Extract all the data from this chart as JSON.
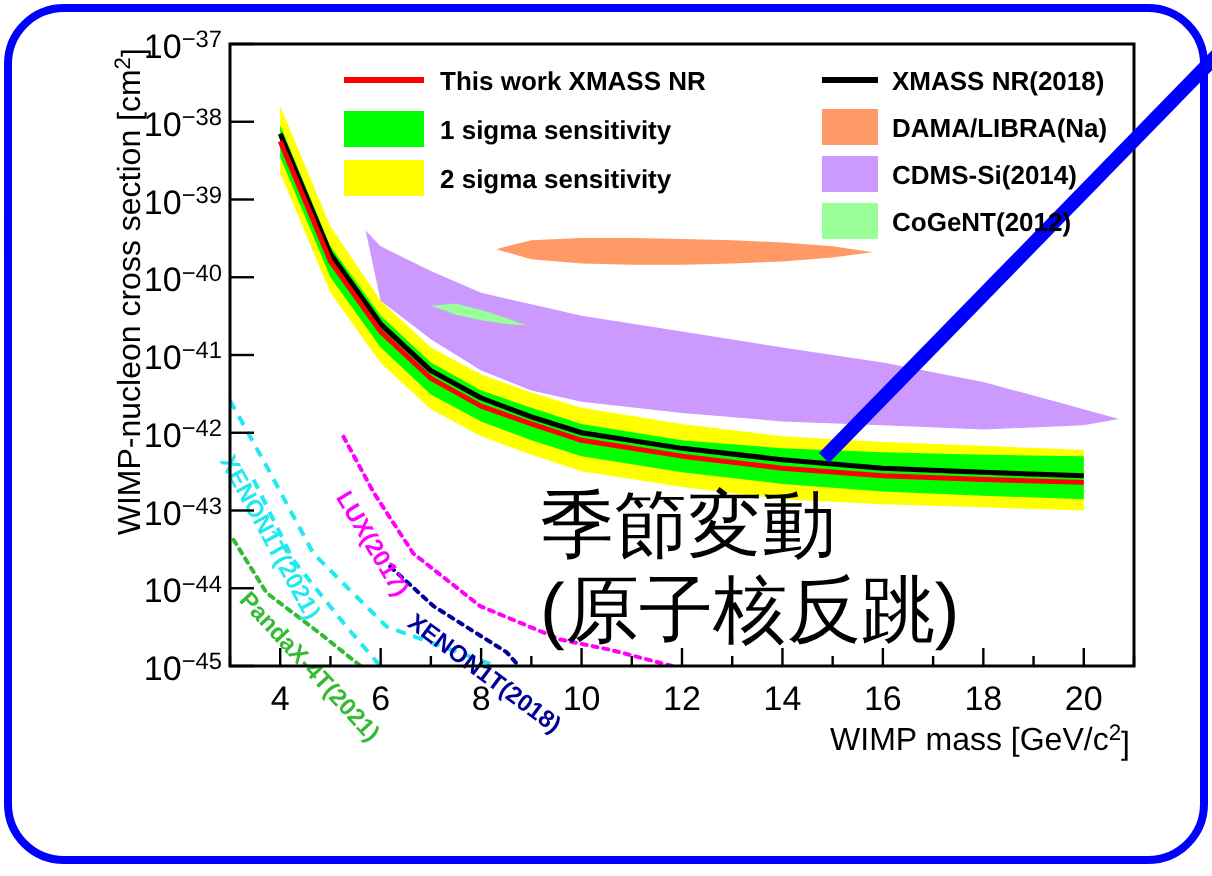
{
  "chart_data": {
    "type": "line",
    "xlabel": "WIMP mass [GeV/c$^{2}$]",
    "ylabel": "WIMP-nucleon cross section [cm$^{2}$]",
    "xlim": [
      3,
      21
    ],
    "xticks": [
      {
        "value": 3,
        "label": null
      },
      4,
      {
        "value": 5,
        "label": null
      },
      6,
      {
        "value": 7,
        "label": null
      },
      8,
      {
        "value": 9,
        "label": null
      },
      10,
      {
        "value": 11,
        "label": null
      },
      12,
      {
        "value": 13,
        "label": null
      },
      14,
      {
        "value": 15,
        "label": null
      },
      16,
      {
        "value": 17,
        "label": null
      },
      18,
      {
        "value": 19,
        "label": null
      },
      20,
      {
        "value": 21,
        "label": null
      }
    ],
    "ylim": [
      1e-45,
      1e-37
    ],
    "yticks": [
      {
        "value": 1e-45,
        "label": "10$^{−45}$"
      },
      {
        "value": 1e-44,
        "label": "10$^{−44}$"
      },
      {
        "value": 1e-43,
        "label": "10$^{−43}$"
      },
      {
        "value": 1e-42,
        "label": "10$^{−42}$"
      },
      {
        "value": 1e-41,
        "label": "10$^{−41}$"
      },
      {
        "value": 1e-40,
        "label": "10$^{−40}$"
      },
      {
        "value": 1e-39,
        "label": "10$^{−39}$"
      },
      {
        "value": 1e-38,
        "label": "10$^{−38}$"
      },
      {
        "value": 1e-37,
        "label": "10$^{−37}$"
      }
    ],
    "log": "y",
    "grid": false,
    "legend": "top",
    "series": [
      {
        "name": "This work XMASS NR",
        "type": "line",
        "line_style": "solid",
        "color": "#ff0000",
        "x": [
          4,
          5,
          6,
          7,
          8,
          9,
          10,
          12,
          14,
          16,
          18,
          20
        ],
        "values": [
          5.6e-39,
          1.6e-40,
          2e-41,
          5e-42,
          2.2e-42,
          1.3e-42,
          8e-43,
          5e-43,
          3.5e-43,
          2.8e-43,
          2.5e-43,
          2.3e-43
        ]
      },
      {
        "name": "1 sigma sensitivity",
        "type": "line",
        "color": "#00ff00",
        "x": [
          4,
          5,
          6,
          7,
          8,
          9,
          10,
          12,
          14,
          16,
          18,
          20
        ],
        "values": [
          null,
          null,
          null,
          null,
          null,
          null,
          null,
          null,
          null,
          null,
          null,
          null
        ],
        "lower": [
          3.5e-39,
          1e-40,
          1.25e-41,
          3.1e-42,
          1.4e-42,
          8e-43,
          5e-43,
          3.1e-43,
          2.2e-43,
          1.75e-43,
          1.55e-43,
          1.4e-43
        ],
        "upper": [
          9e-39,
          2.5e-40,
          3.2e-41,
          8e-42,
          3.5e-42,
          2.1e-42,
          1.3e-42,
          8e-43,
          6.3e-43,
          5.6e-43,
          5.2e-43,
          5e-43
        ]
      },
      {
        "name": "2 sigma sensitivity",
        "type": "line",
        "color": "#ffff00",
        "x": [
          4,
          5,
          6,
          7,
          8,
          9,
          10,
          12,
          14,
          16,
          18,
          20
        ],
        "values": [
          null,
          null,
          null,
          null,
          null,
          null,
          null,
          null,
          null,
          null,
          null,
          null
        ],
        "lower": [
          2.2e-39,
          6.3e-41,
          7.9e-42,
          2e-42,
          9e-43,
          5.2e-43,
          3.2e-43,
          2e-43,
          1.4e-43,
          1.2e-43,
          1.1e-43,
          1e-43
        ],
        "upper": [
          1.6e-38,
          4.5e-40,
          5e-41,
          1.25e-41,
          5.6e-42,
          3.3e-42,
          2.1e-42,
          1.3e-42,
          9e-43,
          7.6e-43,
          6.8e-43,
          6e-43
        ]
      },
      {
        "name": "XMASS NR(2018)",
        "type": "line",
        "line_style": "solid",
        "color": "#000000",
        "x": [
          4,
          5,
          6,
          7,
          8,
          9,
          10,
          12,
          14,
          16,
          18,
          20
        ],
        "values": [
          7e-39,
          2e-40,
          2.5e-41,
          6.3e-42,
          2.8e-42,
          1.6e-42,
          1e-42,
          6.3e-43,
          4.5e-43,
          3.5e-43,
          3.1e-43,
          2.8e-43
        ]
      },
      {
        "name": "DAMA/LIBRA(Na)",
        "type": "line",
        "color": "#ff9966",
        "x": [
          8.3,
          9,
          10,
          11,
          12,
          13,
          14,
          15,
          15.8
        ],
        "values": [
          null,
          null,
          null,
          null,
          null,
          null,
          null,
          null,
          null
        ],
        "lower": [
          2.3e-40,
          1.7e-40,
          1.5e-40,
          1.45e-40,
          1.45e-40,
          1.5e-40,
          1.6e-40,
          1.8e-40,
          2.1e-40
        ],
        "upper": [
          2.3e-40,
          3e-40,
          3.2e-40,
          3.2e-40,
          3.1e-40,
          3e-40,
          2.8e-40,
          2.5e-40,
          2.1e-40
        ]
      },
      {
        "name": "CDMS-Si(2014)",
        "type": "line",
        "color": "#cc99ff",
        "x": [
          5.7,
          6,
          7,
          8,
          9,
          10,
          12,
          14,
          16,
          18,
          20,
          20.7
        ],
        "values": [
          null,
          null,
          null,
          null,
          null,
          null,
          null,
          null,
          null,
          null,
          null,
          null
        ],
        "lower": [
          4e-40,
          5e-41,
          1.6e-41,
          6.3e-42,
          3.5e-42,
          2.5e-42,
          1.8e-42,
          1.4e-42,
          1.25e-42,
          1.1e-42,
          1.25e-42,
          1.5e-42
        ],
        "upper": [
          4e-40,
          2.5e-40,
          1.2e-40,
          6.3e-41,
          4.5e-41,
          3.2e-41,
          2e-41,
          1.25e-41,
          8e-42,
          4.5e-42,
          2e-42,
          1.5e-42
        ]
      },
      {
        "name": "CoGeNT(2012)",
        "type": "line",
        "color": "#99ff99",
        "x": [
          7,
          7.5,
          8,
          8.5,
          8.9
        ],
        "values": [
          null,
          null,
          null,
          null,
          null
        ],
        "lower": [
          4.3e-41,
          3.3e-41,
          2.8e-41,
          2.5e-41,
          2.4e-41
        ],
        "upper": [
          4.3e-41,
          4.6e-41,
          3.8e-41,
          3e-41,
          2.4e-41
        ]
      },
      {
        "name": "XENON1T(2021)",
        "type": "line",
        "line_style": "dashed",
        "color": "#22e8f0",
        "x": [
          3.0,
          3.73,
          4.66,
          6.12,
          7.2,
          8.3
        ],
        "values": [
          2.6e-42,
          3.7e-43,
          2.8e-44,
          3.2e-45,
          1.8e-45,
          1e-45
        ]
      },
      {
        "type": "line",
        "line_style": "dashed",
        "color": "#22e8f0",
        "x": [
          3.47,
          4.26,
          5.32,
          5.99
        ],
        "values": [
          2.5e-43,
          2.3e-44,
          3.2e-45,
          1e-45
        ]
      },
      {
        "name": "PandaX-4T(2021)",
        "type": "line",
        "line_style": "dotted",
        "color": "#33bb33",
        "x": [
          3.07,
          3.73,
          4.8,
          5.6
        ],
        "values": [
          4.2e-44,
          8.7e-45,
          2.6e-45,
          1e-45
        ]
      },
      {
        "name": "LUX(2017)",
        "type": "line",
        "line_style": "dotted",
        "color": "#ff00ff",
        "x": [
          5.26,
          5.86,
          6.65,
          7.98,
          9.57,
          10.6,
          11.8
        ],
        "values": [
          8.9e-43,
          1.7e-43,
          2.8e-44,
          5.9e-45,
          2.2e-45,
          1.6e-45,
          1e-45
        ]
      },
      {
        "name": "XENON1T(2018)",
        "type": "line",
        "line_style": "dotted",
        "color": "#000099",
        "x": [
          6.19,
          7.05,
          8.51,
          8.75
        ],
        "values": [
          1.9e-44,
          5.9e-45,
          1.5e-45,
          1e-45
        ]
      }
    ],
    "annotations": [
      "季節変動\n(原子核反跳)"
    ]
  }
}
